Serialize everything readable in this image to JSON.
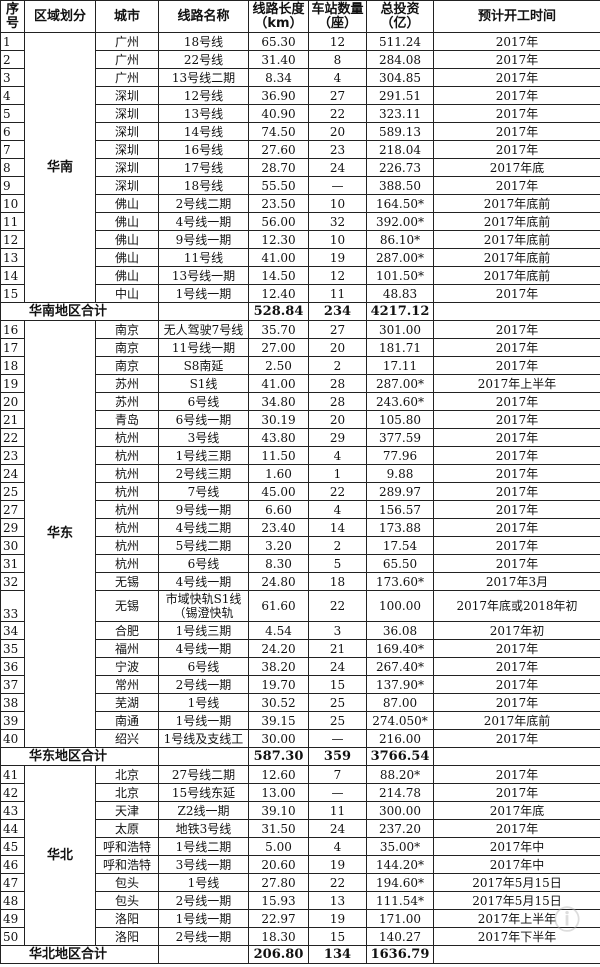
{
  "headers": [
    "序号",
    "区域划分",
    "城市",
    "线路名称",
    "线路长度（km）",
    "车站数量（座）",
    "总投资（亿）",
    "预计开工时间"
  ],
  "regions": [
    {
      "name": "华南",
      "subtotal": {
        "label": "华南地区合计",
        "length": "528.84",
        "stations": "234",
        "investment": "4217.12"
      },
      "rows": [
        [
          "1",
          "广州",
          "18号线",
          "65.30",
          "12",
          "511.24",
          "2017年"
        ],
        [
          "2",
          "广州",
          "22号线",
          "31.40",
          "8",
          "284.08",
          "2017年"
        ],
        [
          "3",
          "广州",
          "13号线二期",
          "8.34",
          "4",
          "304.85",
          "2017年"
        ],
        [
          "4",
          "深圳",
          "12号线",
          "36.90",
          "27",
          "291.51",
          "2017年"
        ],
        [
          "5",
          "深圳",
          "13号线",
          "40.90",
          "22",
          "323.11",
          "2017年"
        ],
        [
          "6",
          "深圳",
          "14号线",
          "74.50",
          "20",
          "589.13",
          "2017年"
        ],
        [
          "7",
          "深圳",
          "16号线",
          "27.60",
          "23",
          "218.04",
          "2017年"
        ],
        [
          "8",
          "深圳",
          "17号线",
          "28.70",
          "24",
          "226.73",
          "2017年底"
        ],
        [
          "9",
          "深圳",
          "18号线",
          "55.50",
          "—",
          "388.50",
          "2017年"
        ],
        [
          "10",
          "佛山",
          "2号线二期",
          "23.50",
          "10",
          "164.50*",
          "2017年底前"
        ],
        [
          "11",
          "佛山",
          "4号线一期",
          "56.00",
          "32",
          "392.00*",
          "2017年底前"
        ],
        [
          "12",
          "佛山",
          "9号线一期",
          "12.30",
          "10",
          "86.10*",
          "2017年底前"
        ],
        [
          "13",
          "佛山",
          "11号线",
          "41.00",
          "19",
          "287.00*",
          "2017年底前"
        ],
        [
          "14",
          "佛山",
          "13号线一期",
          "14.50",
          "12",
          "101.50*",
          "2017年底前"
        ],
        [
          "15",
          "中山",
          "1号线一期",
          "12.40",
          "11",
          "48.83",
          "2017年"
        ]
      ]
    },
    {
      "name": "华东",
      "subtotal": {
        "label": "华东地区合计",
        "length": "587.30",
        "stations": "359",
        "investment": "3766.54"
      },
      "rows": [
        [
          "16",
          "南京",
          "无人驾驶7号线",
          "35.70",
          "27",
          "301.00",
          "2017年"
        ],
        [
          "17",
          "南京",
          "11号线一期",
          "27.00",
          "20",
          "181.71",
          "2017年"
        ],
        [
          "18",
          "南京",
          "S8南延",
          "2.50",
          "2",
          "17.11",
          "2017年"
        ],
        [
          "19",
          "苏州",
          "S1线",
          "41.00",
          "28",
          "287.00*",
          "2017年上半年"
        ],
        [
          "20",
          "苏州",
          "6号线",
          "34.80",
          "28",
          "243.60*",
          "2017年"
        ],
        [
          "21",
          "青岛",
          "6号线一期",
          "30.19",
          "20",
          "105.80",
          "2017年"
        ],
        [
          "22",
          "杭州",
          "3号线",
          "43.80",
          "29",
          "377.59",
          "2017年"
        ],
        [
          "23",
          "杭州",
          "1号线三期",
          "11.50",
          "4",
          "77.96",
          "2017年"
        ],
        [
          "24",
          "杭州",
          "2号线三期",
          "1.60",
          "1",
          "9.88",
          "2017年"
        ],
        [
          "25",
          "杭州",
          "7号线",
          "45.00",
          "22",
          "289.97",
          "2017年"
        ],
        [
          "27",
          "杭州",
          "9号线一期",
          "6.60",
          "4",
          "156.57",
          "2017年"
        ],
        [
          "29",
          "杭州",
          "4号线二期",
          "23.40",
          "14",
          "173.88",
          "2017年"
        ],
        [
          "30",
          "杭州",
          "5号线二期",
          "3.20",
          "2",
          "17.54",
          "2017年"
        ],
        [
          "31",
          "杭州",
          "6号线",
          "8.30",
          "5",
          "65.50",
          "2017年"
        ],
        [
          "32",
          "无锡",
          "4号线一期",
          "24.80",
          "18",
          "173.60*",
          "2017年3月"
        ],
        [
          "33",
          "无锡",
          "市域快轨S1线（锡澄快轨",
          "61.60",
          "22",
          "100.00",
          "2017年底或2018年初"
        ],
        [
          "34",
          "合肥",
          "1号线三期",
          "4.54",
          "3",
          "36.08",
          "2017年初"
        ],
        [
          "35",
          "福州",
          "4号线一期",
          "24.20",
          "21",
          "169.40*",
          "2017年"
        ],
        [
          "36",
          "宁波",
          "6号线",
          "38.20",
          "24",
          "267.40*",
          "2017年"
        ],
        [
          "37",
          "常州",
          "2号线一期",
          "19.70",
          "15",
          "137.90*",
          "2017年"
        ],
        [
          "38",
          "芜湖",
          "1号线",
          "30.52",
          "25",
          "87.00",
          "2017年"
        ],
        [
          "39",
          "南通",
          "1号线一期",
          "39.15",
          "25",
          "274.050*",
          "2017年底前"
        ],
        [
          "40",
          "绍兴",
          "1号线及支线工",
          "30.00",
          "—",
          "216.00",
          "2017年"
        ]
      ]
    },
    {
      "name": "华北",
      "subtotal": {
        "label": "华北地区合计",
        "length": "206.80",
        "stations": "134",
        "investment": "1636.79"
      },
      "rows": [
        [
          "41",
          "北京",
          "27号线二期",
          "12.60",
          "7",
          "88.20*",
          "2017年"
        ],
        [
          "42",
          "北京",
          "15号线东延",
          "13.00",
          "—",
          "214.78",
          "2017年"
        ],
        [
          "43",
          "天津",
          "Z2线一期",
          "39.10",
          "11",
          "300.00",
          "2017年底"
        ],
        [
          "44",
          "太原",
          "地铁3号线",
          "31.50",
          "24",
          "237.20",
          "2017年"
        ],
        [
          "45",
          "呼和浩特",
          "1号线二期",
          "5.00",
          "4",
          "35.00*",
          "2017年中"
        ],
        [
          "46",
          "呼和浩特",
          "3号线一期",
          "20.60",
          "19",
          "144.20*",
          "2017年中"
        ],
        [
          "47",
          "包头",
          "1号线",
          "27.80",
          "22",
          "194.60*",
          "2017年5月15日"
        ],
        [
          "48",
          "包头",
          "2号线一期",
          "15.93",
          "13",
          "111.54*",
          "2017年5月15日"
        ],
        [
          "49",
          "洛阳",
          "1号线一期",
          "22.97",
          "19",
          "171.00",
          "2017年上半年"
        ],
        [
          "50",
          "洛阳",
          "2号线一期",
          "18.30",
          "15",
          "140.27",
          "2017年下半年"
        ]
      ]
    }
  ]
}
